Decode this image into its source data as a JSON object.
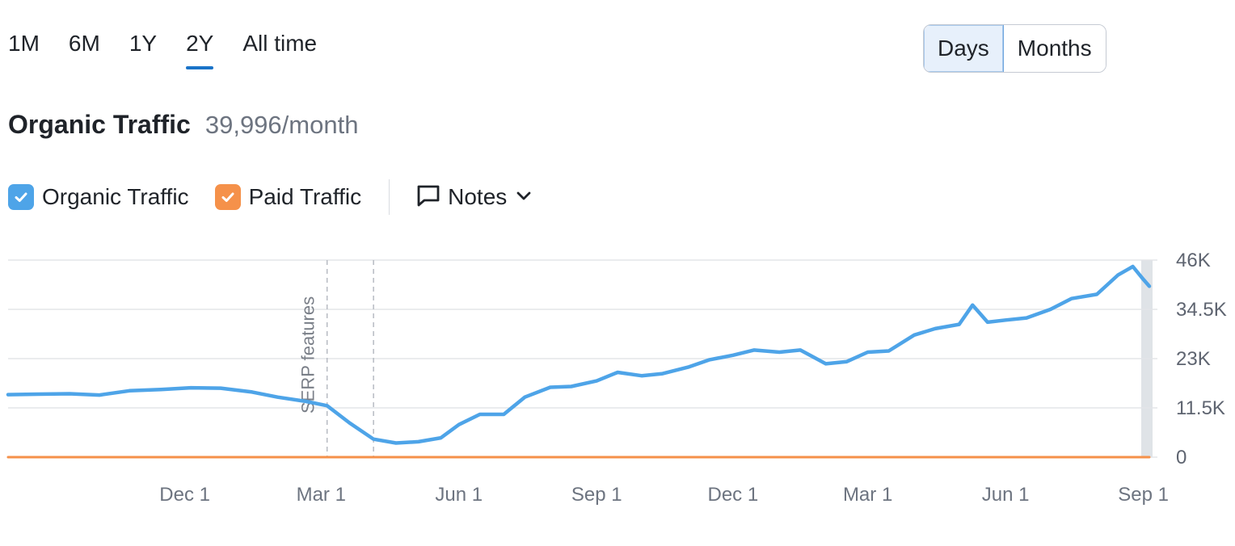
{
  "period_tabs": [
    {
      "label": "1M",
      "active": false
    },
    {
      "label": "6M",
      "active": false
    },
    {
      "label": "1Y",
      "active": false
    },
    {
      "label": "2Y",
      "active": true
    },
    {
      "label": "All time",
      "active": false
    }
  ],
  "granularity": {
    "days_label": "Days",
    "months_label": "Months",
    "selected": "Days"
  },
  "header": {
    "title": "Organic Traffic",
    "value": "39,996/month"
  },
  "legend": {
    "organic_label": "Organic Traffic",
    "paid_label": "Paid Traffic",
    "notes_label": "Notes"
  },
  "colors": {
    "organic": "#4ea4e8",
    "paid": "#f5914a",
    "grid": "#e3e5e8",
    "accent": "#1a73c8"
  },
  "chart_data": {
    "type": "line",
    "ylim": [
      0,
      46000
    ],
    "y_ticks": [
      {
        "value": 0,
        "label": "0"
      },
      {
        "value": 11500,
        "label": "11.5K"
      },
      {
        "value": 23000,
        "label": "23K"
      },
      {
        "value": 34500,
        "label": "34.5K"
      },
      {
        "value": 46000,
        "label": "46K"
      }
    ],
    "x_range": [
      "2023-08-05",
      "2025-09-05"
    ],
    "x_ticks": [
      {
        "date": "2023-12-01",
        "label": "Dec 1"
      },
      {
        "date": "2024-03-01",
        "label": "Mar 1"
      },
      {
        "date": "2024-06-01",
        "label": "Jun 1"
      },
      {
        "date": "2024-09-01",
        "label": "Sep 1"
      },
      {
        "date": "2024-12-01",
        "label": "Dec 1"
      },
      {
        "date": "2025-03-01",
        "label": "Mar 1"
      },
      {
        "date": "2025-06-01",
        "label": "Jun 1"
      },
      {
        "date": "2025-09-01",
        "label": "Sep 1"
      }
    ],
    "annotations": [
      {
        "date": "2024-03-05",
        "label": "SERP features"
      },
      {
        "date": "2024-04-05",
        "label": ""
      }
    ],
    "series": [
      {
        "name": "Organic Traffic",
        "points": [
          [
            "2023-08-05",
            14600
          ],
          [
            "2023-08-25",
            14700
          ],
          [
            "2023-09-15",
            14800
          ],
          [
            "2023-10-05",
            14500
          ],
          [
            "2023-10-25",
            15500
          ],
          [
            "2023-11-15",
            15800
          ],
          [
            "2023-12-05",
            16200
          ],
          [
            "2023-12-25",
            16100
          ],
          [
            "2024-01-15",
            15200
          ],
          [
            "2024-02-01",
            14000
          ],
          [
            "2024-02-20",
            13000
          ],
          [
            "2024-03-05",
            12000
          ],
          [
            "2024-03-20",
            8000
          ],
          [
            "2024-04-05",
            4200
          ],
          [
            "2024-04-20",
            3300
          ],
          [
            "2024-05-05",
            3600
          ],
          [
            "2024-05-20",
            4500
          ],
          [
            "2024-06-01",
            7600
          ],
          [
            "2024-06-15",
            10000
          ],
          [
            "2024-07-01",
            10000
          ],
          [
            "2024-07-15",
            14000
          ],
          [
            "2024-08-01",
            16300
          ],
          [
            "2024-08-15",
            16500
          ],
          [
            "2024-09-01",
            17800
          ],
          [
            "2024-09-15",
            19800
          ],
          [
            "2024-10-01",
            19000
          ],
          [
            "2024-10-15",
            19500
          ],
          [
            "2024-11-01",
            21000
          ],
          [
            "2024-11-15",
            22700
          ],
          [
            "2024-12-01",
            23800
          ],
          [
            "2024-12-15",
            25000
          ],
          [
            "2025-01-01",
            24500
          ],
          [
            "2025-01-15",
            25000
          ],
          [
            "2025-02-01",
            21800
          ],
          [
            "2025-02-15",
            22300
          ],
          [
            "2025-03-01",
            24500
          ],
          [
            "2025-03-15",
            24800
          ],
          [
            "2025-04-01",
            28500
          ],
          [
            "2025-04-15",
            30000
          ],
          [
            "2025-05-01",
            31000
          ],
          [
            "2025-05-10",
            35500
          ],
          [
            "2025-05-20",
            31500
          ],
          [
            "2025-06-01",
            32000
          ],
          [
            "2025-06-15",
            32500
          ],
          [
            "2025-07-01",
            34500
          ],
          [
            "2025-07-15",
            37000
          ],
          [
            "2025-08-01",
            38000
          ],
          [
            "2025-08-15",
            42500
          ],
          [
            "2025-08-25",
            44500
          ],
          [
            "2025-09-01",
            41500
          ],
          [
            "2025-09-05",
            39900
          ]
        ]
      },
      {
        "name": "Paid Traffic",
        "points": [
          [
            "2023-08-05",
            0
          ],
          [
            "2025-09-05",
            0
          ]
        ]
      }
    ]
  }
}
